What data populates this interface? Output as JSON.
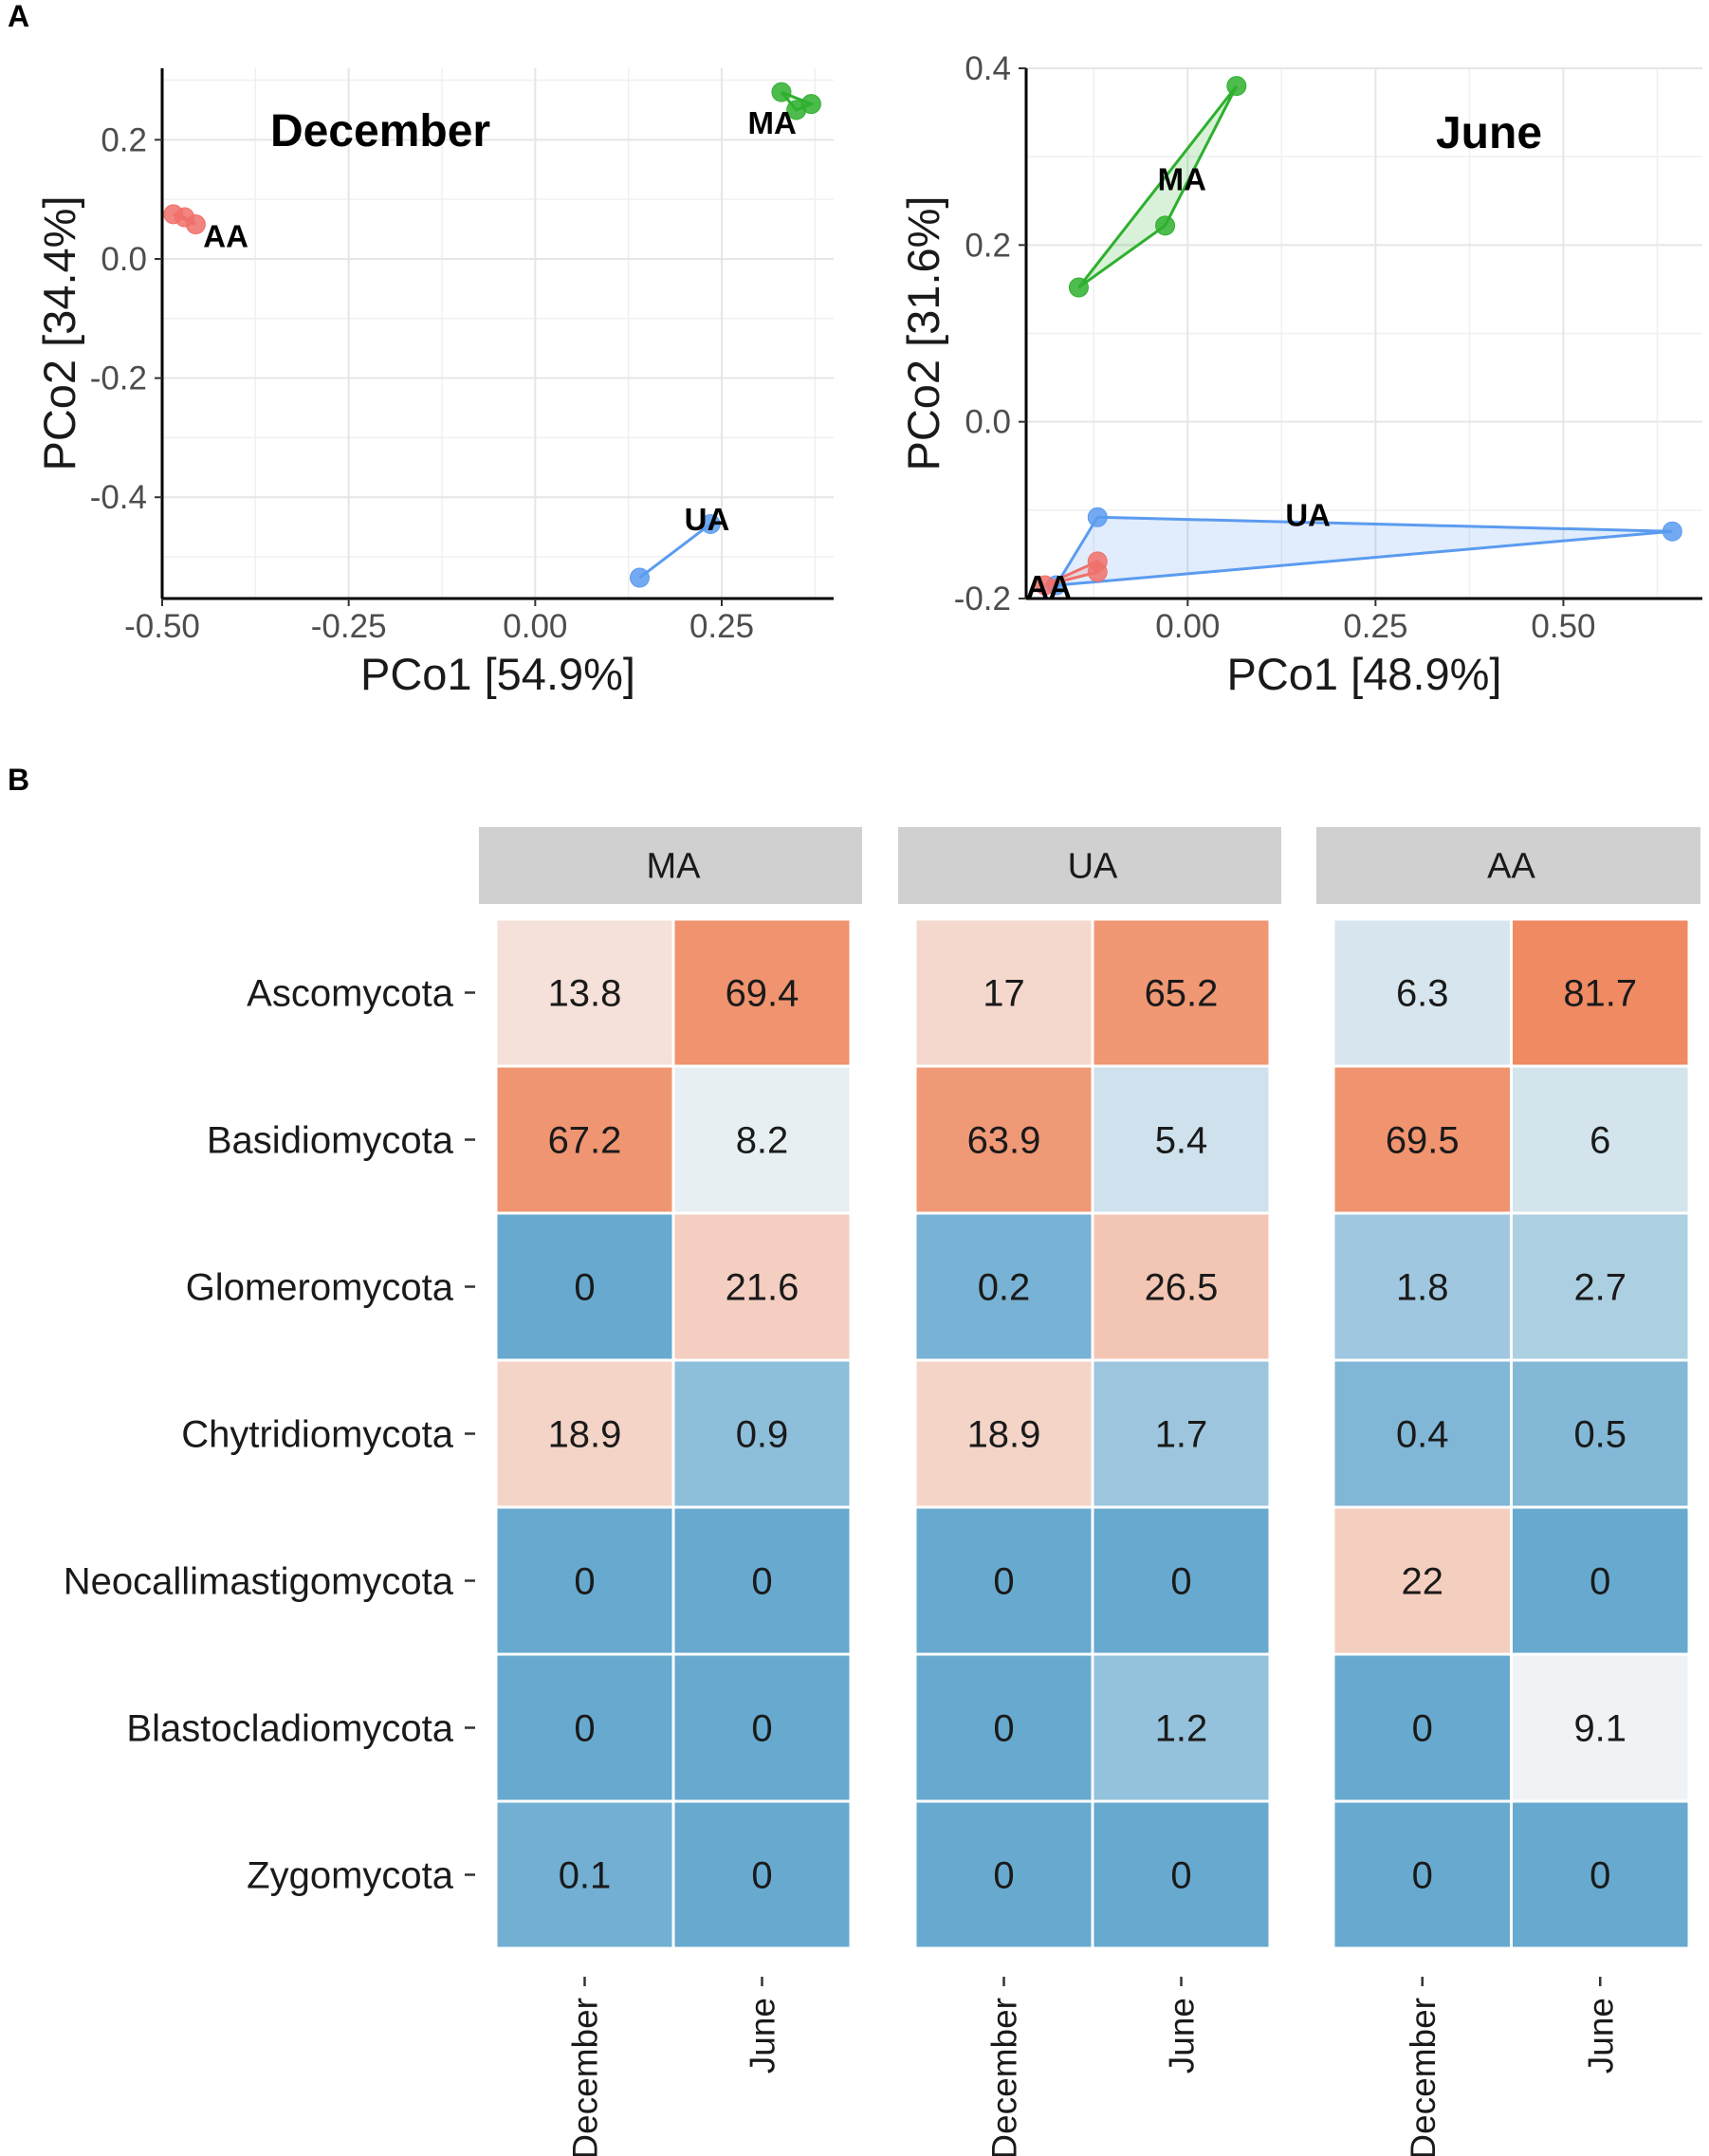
{
  "panels": {
    "a": "A",
    "b": "B"
  },
  "colors": {
    "MA": "#2EB02E",
    "UA": "#5B9BF0",
    "AA": "#F0706A",
    "grid": "#e6e6e6",
    "strip": "#d0d0d0",
    "heat_low": "#67a9cf",
    "heat_mid": "#f7f7f7",
    "heat_high": "#ef8a62"
  },
  "chart_data": [
    {
      "type": "scatter",
      "title": "December",
      "xlabel": "PCo1 [54.9%]",
      "ylabel": "PCo2 [34.4%]",
      "xlim": [
        -0.5,
        0.4
      ],
      "ylim": [
        -0.57,
        0.32
      ],
      "xticks": [
        -0.5,
        -0.25,
        0.0,
        0.25
      ],
      "xtick_labels": [
        "-0.50",
        "-0.25",
        "0.00",
        "0.25"
      ],
      "yticks": [
        -0.4,
        -0.2,
        0.0,
        0.2
      ],
      "ytick_labels": [
        "-0.4",
        "-0.2",
        "0.0",
        "0.2"
      ],
      "series": [
        {
          "name": "MA",
          "points": [
            [
              0.33,
              0.28
            ],
            [
              0.35,
              0.25
            ],
            [
              0.37,
              0.26
            ]
          ],
          "label_at": [
            0.285,
            0.21
          ]
        },
        {
          "name": "AA",
          "points": [
            [
              -0.485,
              0.075
            ],
            [
              -0.47,
              0.07
            ],
            [
              -0.455,
              0.058
            ]
          ],
          "label_at": [
            -0.445,
            0.02
          ]
        },
        {
          "name": "UA",
          "points": [
            [
              0.14,
              -0.535
            ],
            [
              0.235,
              -0.445
            ]
          ],
          "label_at": [
            0.2,
            -0.455
          ]
        }
      ]
    },
    {
      "type": "scatter",
      "title": "June",
      "xlabel": "PCo1 [48.9%]",
      "ylabel": "PCo2 [31.6%]",
      "xlim": [
        -0.215,
        0.685
      ],
      "ylim": [
        -0.2,
        0.4
      ],
      "xticks": [
        0.0,
        0.25,
        0.5
      ],
      "xtick_labels": [
        "0.00",
        "0.25",
        "0.50"
      ],
      "yticks": [
        -0.2,
        0.0,
        0.2,
        0.4
      ],
      "ytick_labels": [
        "-0.2",
        "0.0",
        "0.2",
        "0.4"
      ],
      "series": [
        {
          "name": "MA",
          "points": [
            [
              -0.145,
              0.152
            ],
            [
              -0.03,
              0.222
            ],
            [
              0.065,
              0.38
            ]
          ],
          "label_at": [
            -0.04,
            0.262
          ]
        },
        {
          "name": "UA",
          "points": [
            [
              -0.12,
              -0.108
            ],
            [
              0.645,
              -0.124
            ],
            [
              -0.175,
              -0.185
            ]
          ],
          "label_at": [
            0.13,
            -0.118
          ]
        },
        {
          "name": "AA",
          "points": [
            [
              -0.12,
              -0.158
            ],
            [
              -0.12,
              -0.17
            ],
            [
              -0.19,
              -0.185
            ]
          ],
          "label_at": [
            -0.215,
            -0.199
          ]
        }
      ]
    },
    {
      "type": "heatmap",
      "rows": [
        "Ascomycota",
        "Basidiomycota",
        "Glomeromycota",
        "Chytridiomycota",
        "Neocallimastigomycota",
        "Blastocladiomycota",
        "Zygomycota"
      ],
      "columns": [
        "December",
        "June"
      ],
      "facets": [
        "MA",
        "UA",
        "AA"
      ],
      "values": {
        "MA": [
          [
            13.8,
            69.4
          ],
          [
            67.2,
            8.2
          ],
          [
            0,
            21.6
          ],
          [
            18.9,
            0.9
          ],
          [
            0,
            0
          ],
          [
            0,
            0
          ],
          [
            0.1,
            0
          ]
        ],
        "UA": [
          [
            17,
            65.2
          ],
          [
            63.9,
            5.4
          ],
          [
            0.2,
            26.5
          ],
          [
            18.9,
            1.7
          ],
          [
            0,
            0
          ],
          [
            0,
            1.2
          ],
          [
            0,
            0
          ]
        ],
        "AA": [
          [
            6.3,
            81.7
          ],
          [
            69.5,
            6
          ],
          [
            1.8,
            2.7
          ],
          [
            0.4,
            0.5
          ],
          [
            22,
            0
          ],
          [
            0,
            9.1
          ],
          [
            0,
            0
          ]
        ]
      },
      "value_labels": {
        "MA": [
          [
            "13.8",
            "69.4"
          ],
          [
            "67.2",
            "8.2"
          ],
          [
            "0",
            "21.6"
          ],
          [
            "18.9",
            "0.9"
          ],
          [
            "0",
            "0"
          ],
          [
            "0",
            "0"
          ],
          [
            "0.1",
            "0"
          ]
        ],
        "UA": [
          [
            "17",
            "65.2"
          ],
          [
            "63.9",
            "5.4"
          ],
          [
            "0.2",
            "26.5"
          ],
          [
            "18.9",
            "1.7"
          ],
          [
            "0",
            "0"
          ],
          [
            "0",
            "1.2"
          ],
          [
            "0",
            "0"
          ]
        ],
        "AA": [
          [
            "6.3",
            "81.7"
          ],
          [
            "69.5",
            "6"
          ],
          [
            "1.8",
            "2.7"
          ],
          [
            "0.4",
            "0.5"
          ],
          [
            "22",
            "0"
          ],
          [
            "0",
            "9.1"
          ],
          [
            "0",
            "0"
          ]
        ]
      }
    }
  ]
}
